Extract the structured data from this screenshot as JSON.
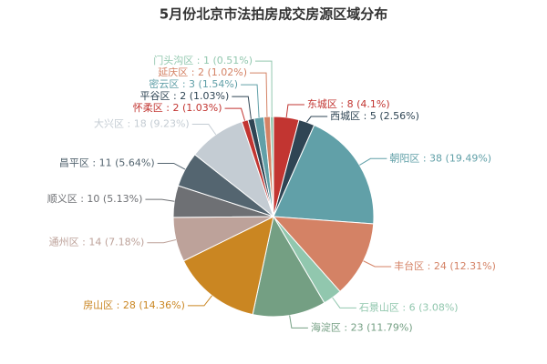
{
  "chart_data": {
    "type": "pie",
    "title": "5月份北京市法拍房成交房源区域分布",
    "categories": [
      "东城区",
      "西城区",
      "朝阳区",
      "丰台区",
      "石景山区",
      "海淀区",
      "房山区",
      "通州区",
      "顺义区",
      "昌平区",
      "大兴区",
      "怀柔区",
      "平谷区",
      "密云区",
      "延庆区",
      "门头沟区"
    ],
    "values": [
      8,
      5,
      38,
      24,
      6,
      23,
      28,
      14,
      10,
      11,
      18,
      2,
      2,
      3,
      2,
      1
    ],
    "value_labels": [
      " : 8 (4.1%)",
      " : 5 (2.56%)",
      " : 38 (19.49%)",
      " : 24 (12.31%)",
      " : 6 (3.08%)",
      " : 23 (11.79%)",
      " : 28 (14.36%)",
      " : 14 (7.18%)",
      " : 10 (5.13%)",
      " : 11 (5.64%)",
      " : 18 (9.23%)",
      " : 2 (1.03%)",
      " : 2 (1.03%)",
      " : 3 (1.54%)",
      " : 2 (1.02%)",
      " : 1 (0.51%)"
    ],
    "colors": [
      "#c23531",
      "#2f4554",
      "#61a0a8",
      "#d48265",
      "#91c7ae",
      "#749f83",
      "#ca8622",
      "#bda29a",
      "#6e7074",
      "#546570",
      "#c4ccd3",
      "#c23531",
      "#2f4554",
      "#61a0a8",
      "#d48265",
      "#91c7ae"
    ]
  }
}
